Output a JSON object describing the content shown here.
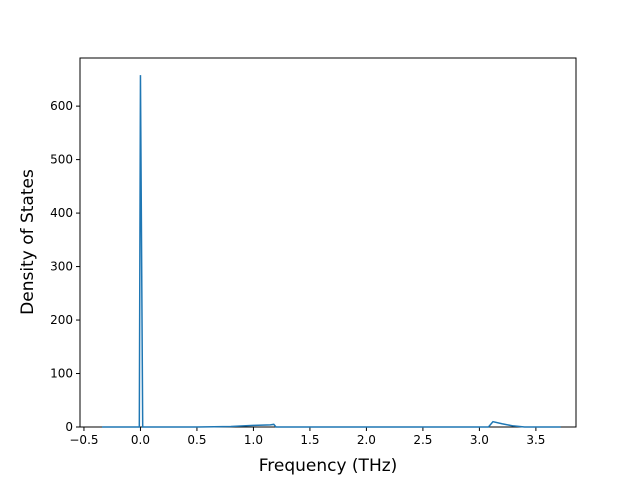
{
  "chart_data": {
    "type": "line",
    "xlabel": "Frequency (THz)",
    "ylabel": "Density of States",
    "x": [
      -0.34,
      -0.01,
      0.0,
      0.02,
      0.5,
      0.8,
      1.0,
      1.15,
      1.18,
      1.2,
      2.5,
      3.08,
      3.12,
      3.2,
      3.3,
      3.4,
      3.72
    ],
    "series": [
      {
        "color": "#1f77b4",
        "values": [
          0,
          0,
          658,
          0,
          0,
          1,
          3,
          4,
          5,
          0,
          0,
          0,
          10,
          6,
          2,
          0,
          0
        ]
      }
    ],
    "xlim": [
      -0.535,
      3.855
    ],
    "ylim": [
      0,
      690
    ],
    "xticks": [
      -0.5,
      0.0,
      0.5,
      1.0,
      1.5,
      2.0,
      2.5,
      3.0,
      3.5
    ],
    "xtick_labels": [
      "−0.5",
      "0.0",
      "0.5",
      "1.0",
      "1.5",
      "2.0",
      "2.5",
      "3.0",
      "3.5"
    ],
    "yticks": [
      0,
      100,
      200,
      300,
      400,
      500,
      600
    ]
  }
}
